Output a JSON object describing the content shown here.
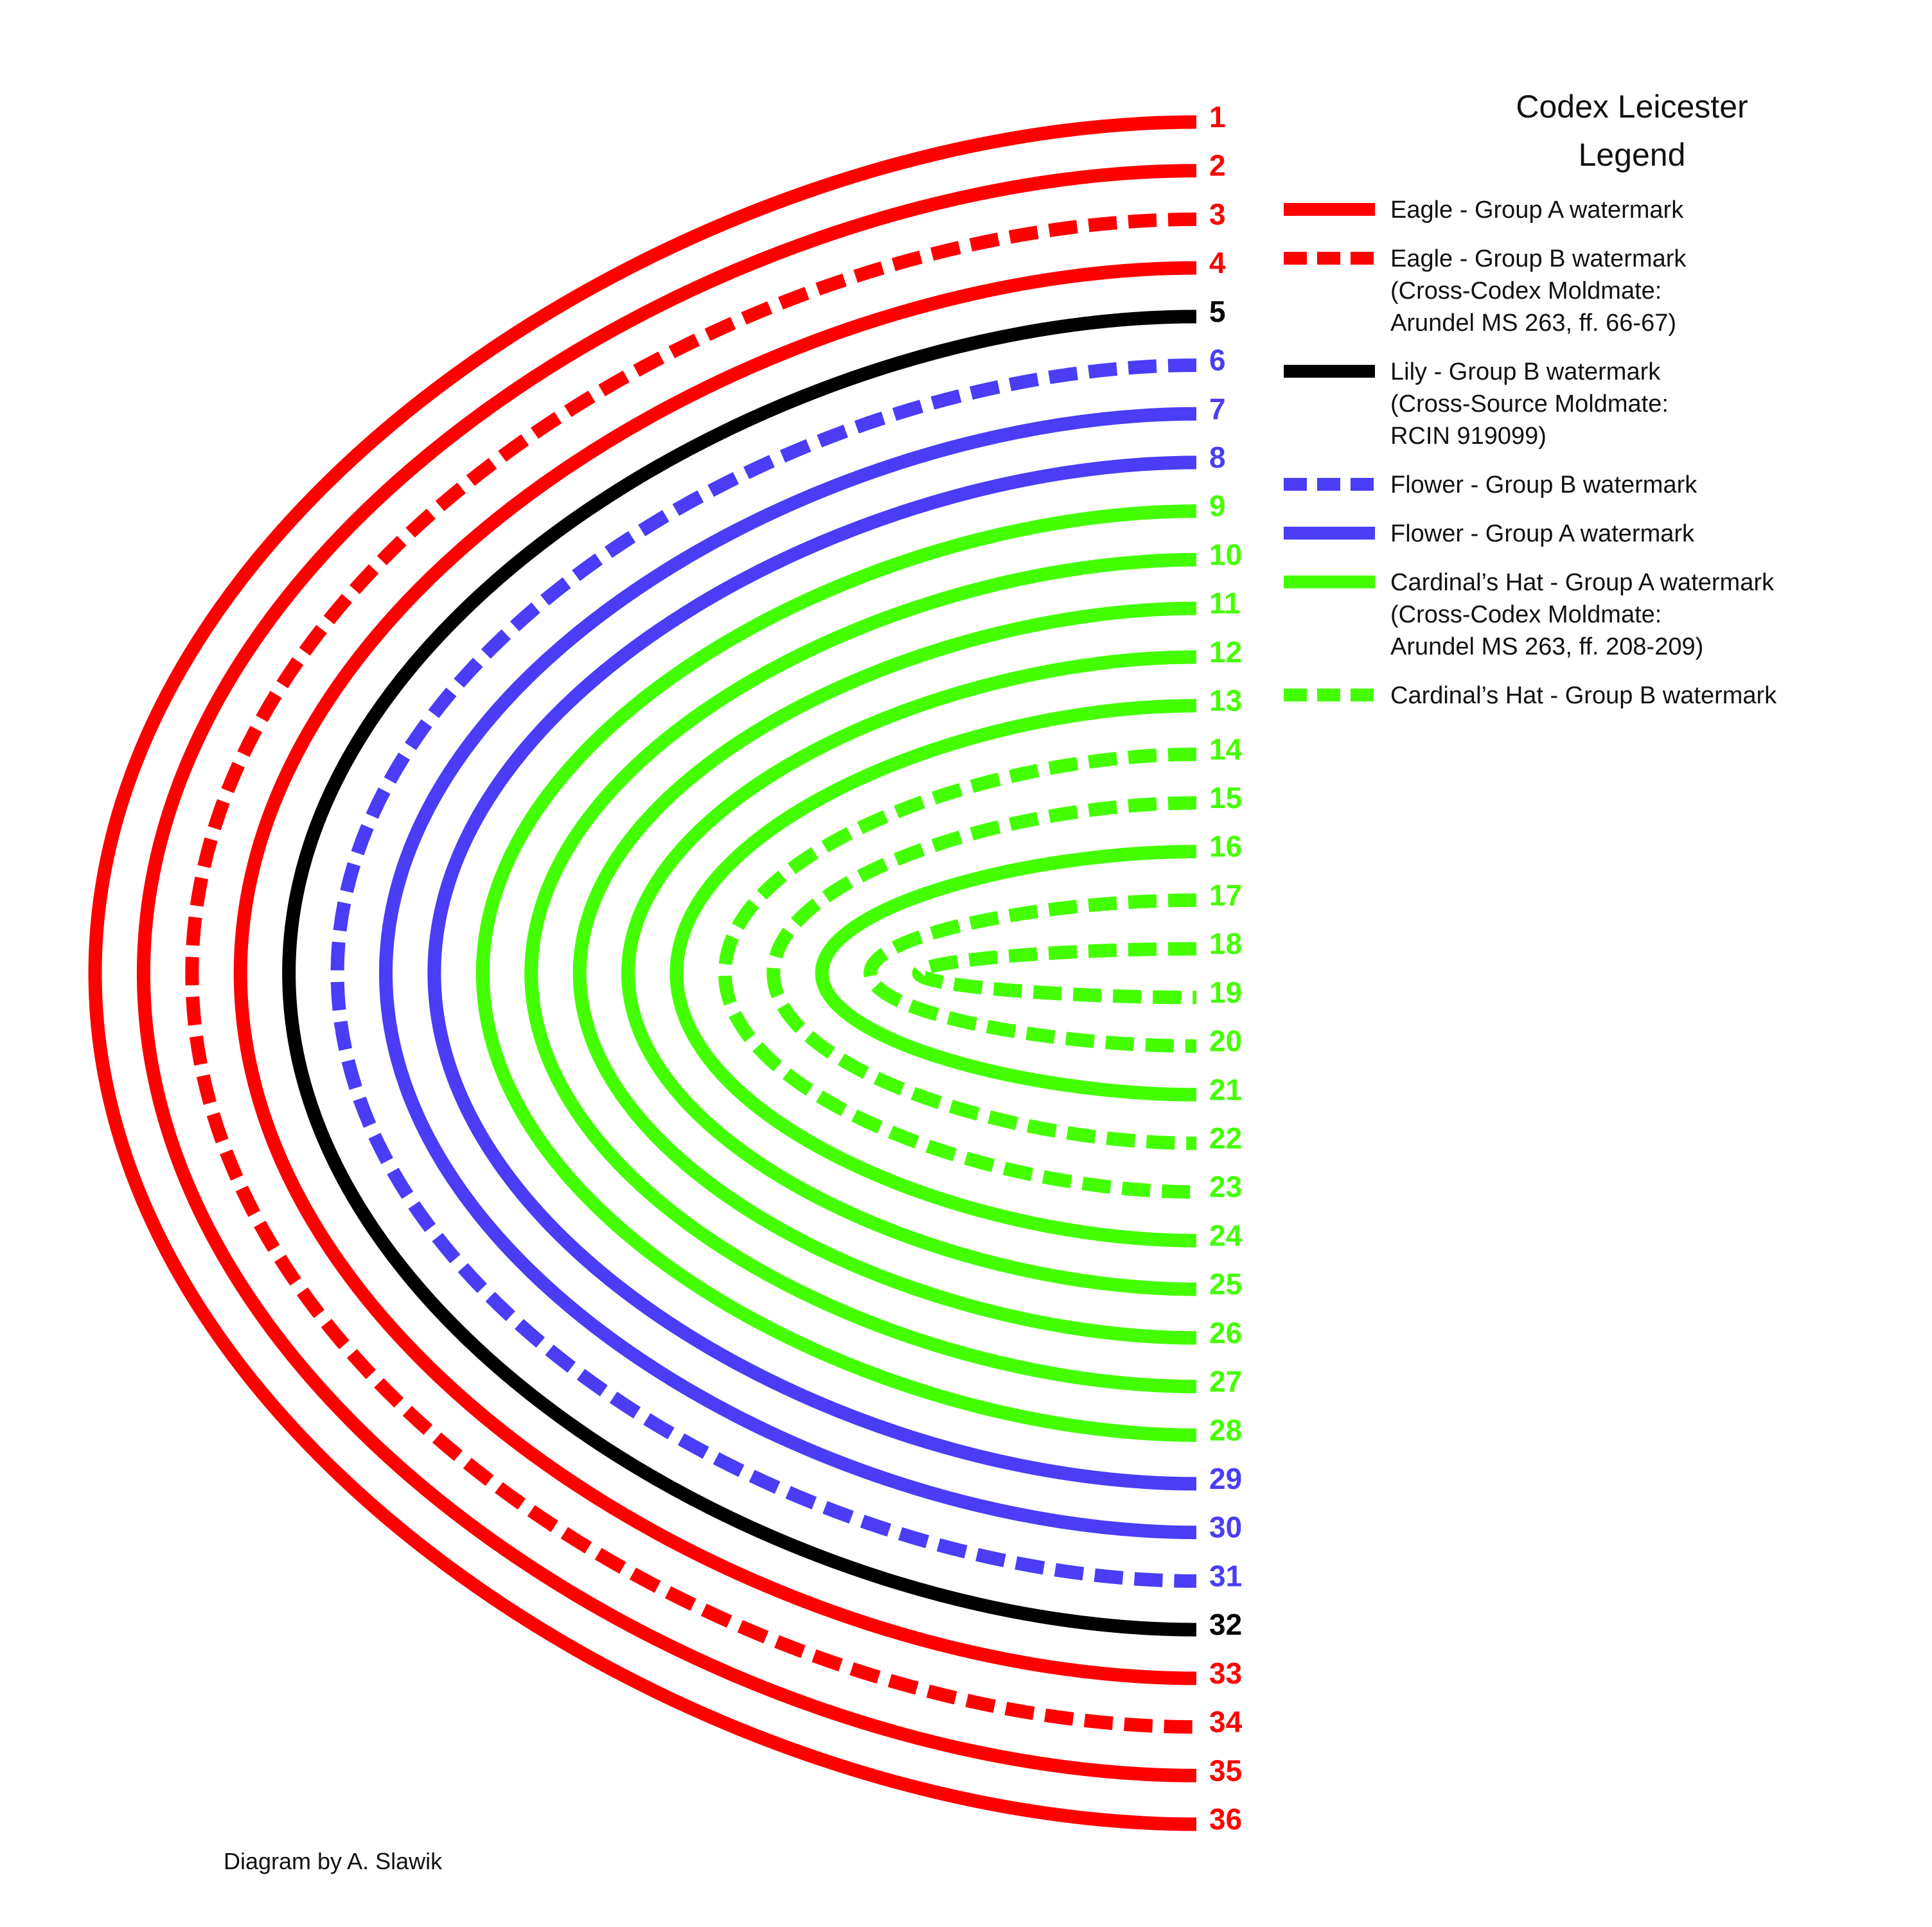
{
  "title": {
    "line1": "Codex Leicester",
    "line2": "Legend"
  },
  "credit": "Diagram by A. Slawik",
  "colors": {
    "eagle": "#ff0000",
    "lily": "#000000",
    "flower": "#4a3df5",
    "cardinal": "#44ff00"
  },
  "legend": [
    {
      "style": "solid",
      "color_key": "eagle",
      "lines": [
        "Eagle - Group A watermark"
      ]
    },
    {
      "style": "dashed",
      "color_key": "eagle",
      "lines": [
        "Eagle - Group B watermark",
        "(Cross-Codex Moldmate:",
        "Arundel MS 263, ff. 66-67)"
      ]
    },
    {
      "style": "solid",
      "color_key": "lily",
      "lines": [
        "Lily - Group B watermark",
        "(Cross-Source Moldmate:",
        "RCIN 919099)"
      ]
    },
    {
      "style": "dashed",
      "color_key": "flower",
      "lines": [
        "Flower - Group B watermark"
      ]
    },
    {
      "style": "solid",
      "color_key": "flower",
      "lines": [
        "Flower - Group A watermark"
      ]
    },
    {
      "style": "solid",
      "color_key": "cardinal",
      "lines": [
        "Cardinal’s Hat - Group A watermark",
        "(Cross-Codex Moldmate:",
        "Arundel MS 263, ff. 208-209)"
      ]
    },
    {
      "style": "dashed",
      "color_key": "cardinal",
      "lines": [
        "Cardinal’s Hat - Group B watermark"
      ]
    }
  ],
  "leaves": [
    {
      "num": "1",
      "color_key": "eagle",
      "style": "solid"
    },
    {
      "num": "2",
      "color_key": "eagle",
      "style": "solid"
    },
    {
      "num": "3",
      "color_key": "eagle",
      "style": "dashed"
    },
    {
      "num": "4",
      "color_key": "eagle",
      "style": "solid"
    },
    {
      "num": "5",
      "color_key": "lily",
      "style": "solid"
    },
    {
      "num": "6",
      "color_key": "flower",
      "style": "dashed"
    },
    {
      "num": "7",
      "color_key": "flower",
      "style": "solid"
    },
    {
      "num": "8",
      "color_key": "flower",
      "style": "solid"
    },
    {
      "num": "9",
      "color_key": "cardinal",
      "style": "solid"
    },
    {
      "num": "10",
      "color_key": "cardinal",
      "style": "solid"
    },
    {
      "num": "11",
      "color_key": "cardinal",
      "style": "solid"
    },
    {
      "num": "12",
      "color_key": "cardinal",
      "style": "solid"
    },
    {
      "num": "13",
      "color_key": "cardinal",
      "style": "solid"
    },
    {
      "num": "14",
      "color_key": "cardinal",
      "style": "dashed"
    },
    {
      "num": "15",
      "color_key": "cardinal",
      "style": "dashed"
    },
    {
      "num": "16",
      "color_key": "cardinal",
      "style": "solid"
    },
    {
      "num": "17",
      "color_key": "cardinal",
      "style": "dashed"
    },
    {
      "num": "18",
      "color_key": "cardinal",
      "style": "dashed"
    },
    {
      "num": "19",
      "color_key": "cardinal",
      "style": "dashed"
    },
    {
      "num": "20",
      "color_key": "cardinal",
      "style": "dashed"
    },
    {
      "num": "21",
      "color_key": "cardinal",
      "style": "solid"
    },
    {
      "num": "22",
      "color_key": "cardinal",
      "style": "dashed"
    },
    {
      "num": "23",
      "color_key": "cardinal",
      "style": "dashed"
    },
    {
      "num": "24",
      "color_key": "cardinal",
      "style": "solid"
    },
    {
      "num": "25",
      "color_key": "cardinal",
      "style": "solid"
    },
    {
      "num": "26",
      "color_key": "cardinal",
      "style": "solid"
    },
    {
      "num": "27",
      "color_key": "cardinal",
      "style": "solid"
    },
    {
      "num": "28",
      "color_key": "cardinal",
      "style": "solid"
    },
    {
      "num": "29",
      "color_key": "flower",
      "style": "solid"
    },
    {
      "num": "30",
      "color_key": "flower",
      "style": "solid"
    },
    {
      "num": "31",
      "color_key": "flower",
      "style": "dashed"
    },
    {
      "num": "32",
      "color_key": "lily",
      "style": "solid"
    },
    {
      "num": "33",
      "color_key": "eagle",
      "style": "solid"
    },
    {
      "num": "34",
      "color_key": "eagle",
      "style": "dashed"
    },
    {
      "num": "35",
      "color_key": "eagle",
      "style": "solid"
    },
    {
      "num": "36",
      "color_key": "eagle",
      "style": "solid"
    }
  ]
}
